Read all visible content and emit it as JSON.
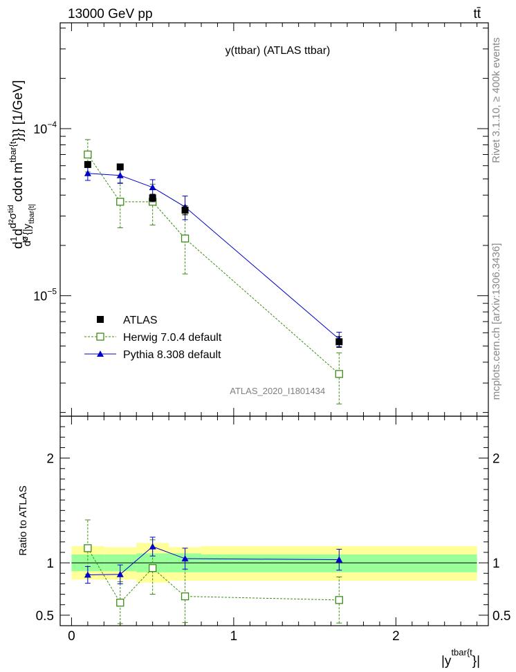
{
  "header": {
    "energy_label": "13000 GeV pp",
    "process_label": "tt̄"
  },
  "side_labels": {
    "rivet": "Rivet 3.1.10, ≥ 400k events",
    "mcplots": "mcplots.cern.ch [arXiv:1306.3436]"
  },
  "chart_data": [
    {
      "type": "scatter",
      "panel": "main",
      "title": "y(ttbar) (ATLAS ttbar)",
      "watermark": "ATLAS_2020_I1801434",
      "ylabel": "d1σdd2σtidd2 {|ytbar{t|cdot mtbar{t}}} [1/GeV]",
      "ylabel_parts": {
        "d": "d",
        "one": "1",
        "sigma": "σ",
        "d2sigma": "d²σ",
        "tid": "tid",
        "d2": "d²",
        "braces": "{|y",
        "tbart_sub": "tbar{t|",
        "cdot": "cdot m",
        "tbart_sup": "tbar{t",
        "close": "}}} [1/GeV]"
      },
      "xlabel": "|ytbar{t}|",
      "xlabel_parts": {
        "base": "|y",
        "sup": "tbar{t",
        "close": "}|"
      },
      "xlim": [
        -0.07,
        2.57
      ],
      "ylim": [
        1.9e-06,
        0.00043
      ],
      "yscale": "log",
      "yticks": [
        {
          "value": 1e-05,
          "label": "10",
          "exp": "−5"
        },
        {
          "value": 0.0001,
          "label": "10",
          "exp": "−4"
        }
      ],
      "legend_position": "bottom-left",
      "series": [
        {
          "name": "ATLAS",
          "color": "#000000",
          "marker": "square-filled",
          "line": "none",
          "x": [
            0.1,
            0.3,
            0.5,
            0.7,
            1.65
          ],
          "y": [
            6.1e-05,
            5.9e-05,
            3.85e-05,
            3.25e-05,
            5.3e-06
          ],
          "err_low": [
            2e-06,
            2e-06,
            2e-06,
            2e-06,
            4e-07
          ],
          "err_high": [
            2e-06,
            2e-06,
            2e-06,
            2e-06,
            4e-07
          ]
        },
        {
          "name": "Herwig 7.0.4 default",
          "color": "#3a8b12",
          "marker": "square-open",
          "line": "dotted",
          "x": [
            0.1,
            0.3,
            0.5,
            0.7,
            1.65
          ],
          "y": [
            7e-05,
            3.65e-05,
            3.65e-05,
            2.2e-05,
            3.4e-06
          ],
          "err_low": [
            1.5e-05,
            1.1e-05,
            1e-05,
            8.5e-06,
            1.15e-06
          ],
          "err_high": [
            1.6e-05,
            1.1e-05,
            1e-05,
            8.5e-06,
            1.15e-06
          ]
        },
        {
          "name": "Pythia 8.308 default",
          "color": "#0000cc",
          "marker": "triangle-filled",
          "line": "solid",
          "x": [
            0.1,
            0.3,
            0.5,
            0.7,
            1.65
          ],
          "y": [
            5.4e-05,
            5.25e-05,
            4.45e-05,
            3.4e-05,
            5.5e-06
          ],
          "err_low": [
            5e-06,
            5.5e-06,
            5e-06,
            5.5e-06,
            5.5e-07
          ],
          "err_high": [
            5e-06,
            5.5e-06,
            5e-06,
            5.5e-06,
            5.5e-07
          ]
        }
      ]
    },
    {
      "type": "scatter",
      "panel": "ratio",
      "ylabel": "Ratio to ATLAS",
      "xlim": [
        -0.07,
        2.57
      ],
      "ylim": [
        0.4,
        2.4
      ],
      "yticks": [
        {
          "value": 0.5,
          "label": "0.5"
        },
        {
          "value": 1,
          "label": "1"
        },
        {
          "value": 2,
          "label": "2"
        }
      ],
      "xticks": [
        {
          "value": 0,
          "label": "0"
        },
        {
          "value": 1,
          "label": "1"
        },
        {
          "value": 2,
          "label": "2"
        }
      ],
      "bands": {
        "edges": [
          0,
          0.2,
          0.4,
          0.6,
          0.8,
          2.5
        ],
        "inner_low": [
          0.92,
          0.92,
          0.91,
          0.91,
          0.91
        ],
        "inner_high": [
          1.08,
          1.08,
          1.09,
          1.09,
          1.08
        ],
        "outer_low": [
          0.84,
          0.84,
          0.81,
          0.83,
          0.83
        ],
        "outer_high": [
          1.16,
          1.15,
          1.19,
          1.15,
          1.16
        ],
        "inner_color": "#99ff99",
        "outer_color": "#ffff99"
      },
      "series": [
        {
          "name": "Herwig 7.0.4 default",
          "color": "#3a8b12",
          "marker": "square-open",
          "line": "dotted",
          "x": [
            0.1,
            0.3,
            0.5,
            0.7,
            1.65
          ],
          "y": [
            1.14,
            0.62,
            0.95,
            0.68,
            0.645
          ],
          "err_low": [
            0.25,
            0.2,
            0.25,
            0.25,
            0.22
          ],
          "err_high": [
            0.27,
            0.2,
            0.27,
            0.35,
            0.22
          ]
        },
        {
          "name": "Pythia 8.308 default",
          "color": "#0000cc",
          "marker": "triangle-filled",
          "line": "solid",
          "x": [
            0.1,
            0.3,
            0.5,
            0.7,
            1.65
          ],
          "y": [
            0.885,
            0.89,
            1.155,
            1.04,
            1.03
          ],
          "err_low": [
            0.08,
            0.09,
            0.09,
            0.1,
            0.1
          ],
          "err_high": [
            0.08,
            0.09,
            0.09,
            0.1,
            0.1
          ]
        }
      ]
    }
  ]
}
